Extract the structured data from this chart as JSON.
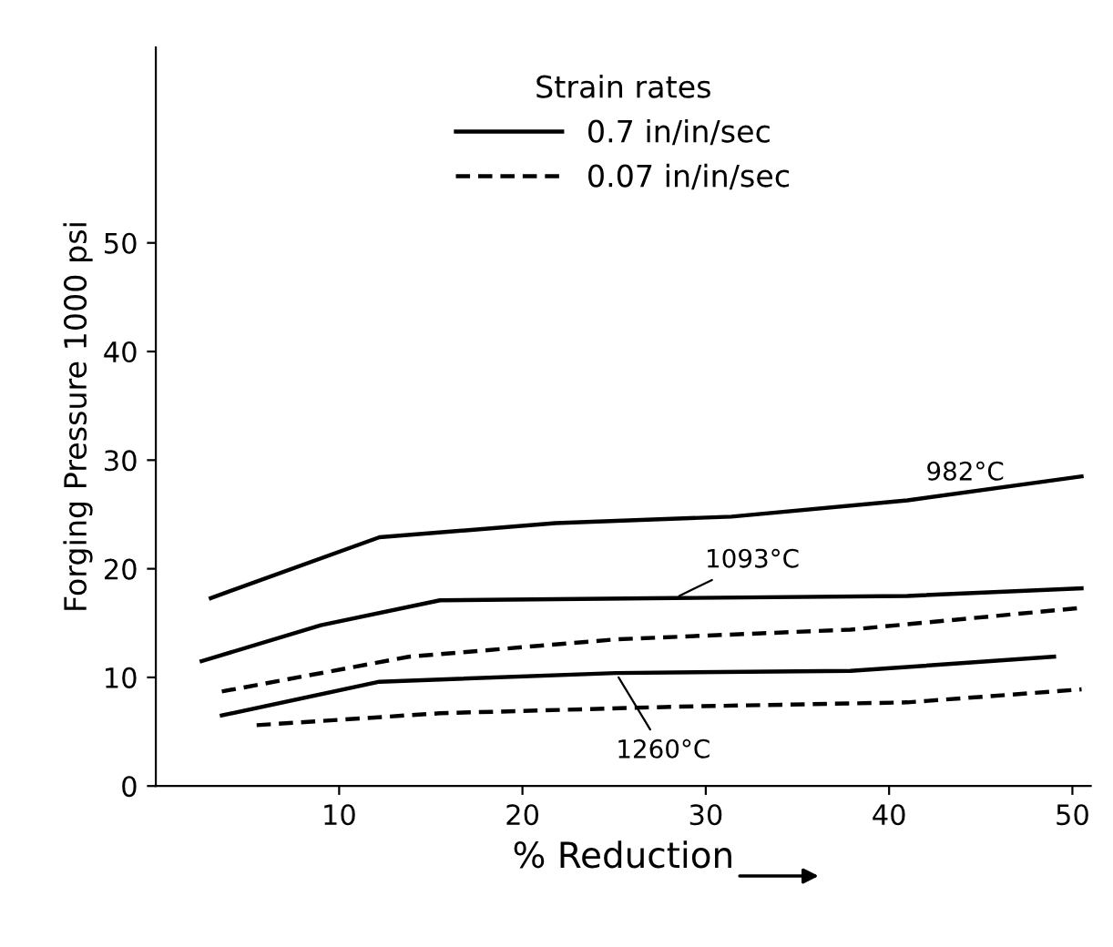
{
  "chart_data": {
    "type": "line",
    "xlabel": "% Reduction",
    "ylabel": "Forging Pressure 1000 psi",
    "legend_title": "Strain rates",
    "xlim": [
      0,
      51
    ],
    "ylim": [
      0,
      68
    ],
    "xticks": [
      10,
      20,
      30,
      40,
      50
    ],
    "yticks": [
      0,
      10,
      20,
      30,
      40,
      50
    ],
    "grid": false,
    "legend": "top",
    "marker": "none",
    "series": [
      {
        "name": "0.7 in/in/sec",
        "color": "#000000",
        "line_style": "solid",
        "x": [
          3.0,
          12.2,
          21.8,
          31.4,
          41,
          50.5
        ],
        "values": [
          17.3,
          22.9,
          24.2,
          24.8,
          26.3,
          28.5
        ]
      },
      {
        "color": "#000000",
        "line_style": "solid",
        "x": [
          2.5,
          9,
          15.5,
          28.3,
          41,
          50.5
        ],
        "values": [
          11.5,
          14.8,
          17.1,
          17.3,
          17.5,
          18.2
        ]
      },
      {
        "name": "0.07 in/in/sec",
        "color": "#000000",
        "line_style": "dashed",
        "x": [
          3.6,
          13.8,
          25.1,
          37.9,
          50.5
        ],
        "values": [
          8.7,
          11.9,
          13.5,
          14.4,
          16.4
        ]
      },
      {
        "color": "#000000",
        "line_style": "solid",
        "x": [
          3.6,
          12.2,
          25.1,
          37.9,
          49
        ],
        "values": [
          6.5,
          9.6,
          10.4,
          10.6,
          11.9
        ]
      },
      {
        "color": "#000000",
        "line_style": "dashed",
        "x": [
          5.5,
          15.5,
          28.3,
          41,
          50.5
        ],
        "values": [
          5.6,
          6.7,
          7.3,
          7.7,
          8.9
        ]
      }
    ],
    "annotations": [
      {
        "text": "982°C",
        "x": 42,
        "y": 26.5
      },
      {
        "text": "1093°C",
        "x": 28.3,
        "y": 17.3
      },
      {
        "text": "1260°C",
        "x": 25.1,
        "y": 10.4
      }
    ]
  }
}
